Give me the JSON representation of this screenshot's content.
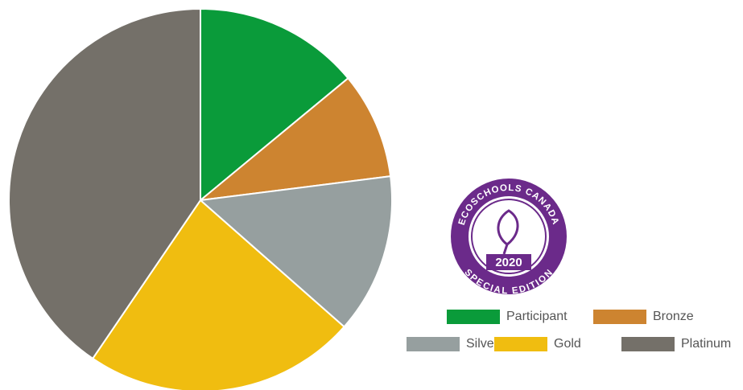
{
  "chart_data": {
    "type": "pie",
    "categories": [
      "Participant",
      "Bronze",
      "Silver",
      "Gold",
      "Platinum"
    ],
    "values": [
      14,
      9,
      13.5,
      23,
      40.5
    ],
    "colors": [
      "#0a9b3a",
      "#cd8430",
      "#969f9f",
      "#f0bd10",
      "#747069"
    ],
    "legend": "bottom-right"
  },
  "badge": {
    "top": "ECOSCHOOLS CANADA",
    "year": "2020",
    "bottom": "SPECIAL EDITION"
  }
}
